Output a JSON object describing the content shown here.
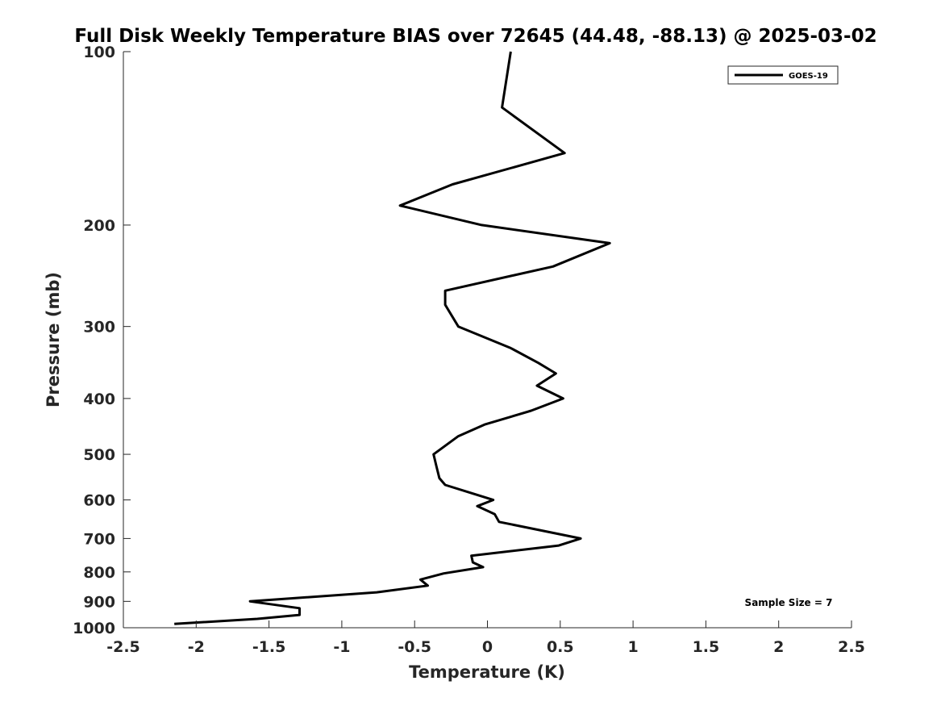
{
  "chart_data": {
    "type": "line",
    "title": "Full Disk Weekly Temperature BIAS over 72645 (44.48, -88.13) @ 2025-03-02",
    "xlabel": "Temperature (K)",
    "ylabel": "Pressure (mb)",
    "xlim": [
      -2.5,
      2.5
    ],
    "ylim": [
      100,
      1000
    ],
    "yscale": "log",
    "y_reversed": true,
    "x_ticks": [
      -2.5,
      -2,
      -1.5,
      -1,
      -0.5,
      0,
      0.5,
      1,
      1.5,
      2,
      2.5
    ],
    "x_tick_labels": [
      "-2.5",
      "-2",
      "-1.5",
      "-1",
      "-0.5",
      "0",
      "0.5",
      "1",
      "1.5",
      "2",
      "2.5"
    ],
    "y_ticks": [
      100,
      200,
      300,
      400,
      500,
      600,
      700,
      800,
      900,
      1000
    ],
    "y_tick_labels": [
      "100",
      "200",
      "300",
      "400",
      "500",
      "600",
      "700",
      "800",
      "900",
      "1000"
    ],
    "grid": false,
    "legend_position": "top-right",
    "annotation": "Sample Size = 7",
    "series": [
      {
        "name": "GOES-19",
        "color": "#000000",
        "points": [
          {
            "x": 0.16,
            "y": 100
          },
          {
            "x": 0.1,
            "y": 125
          },
          {
            "x": 0.53,
            "y": 150
          },
          {
            "x": -0.24,
            "y": 170
          },
          {
            "x": -0.6,
            "y": 185
          },
          {
            "x": -0.04,
            "y": 200
          },
          {
            "x": 0.84,
            "y": 215
          },
          {
            "x": 0.45,
            "y": 236
          },
          {
            "x": -0.29,
            "y": 260
          },
          {
            "x": -0.29,
            "y": 275
          },
          {
            "x": -0.2,
            "y": 300
          },
          {
            "x": 0.16,
            "y": 327
          },
          {
            "x": 0.35,
            "y": 347
          },
          {
            "x": 0.47,
            "y": 362
          },
          {
            "x": 0.34,
            "y": 380
          },
          {
            "x": 0.52,
            "y": 400
          },
          {
            "x": 0.3,
            "y": 420
          },
          {
            "x": -0.02,
            "y": 444
          },
          {
            "x": -0.2,
            "y": 465
          },
          {
            "x": -0.37,
            "y": 500
          },
          {
            "x": -0.35,
            "y": 525
          },
          {
            "x": -0.33,
            "y": 550
          },
          {
            "x": -0.29,
            "y": 565
          },
          {
            "x": -0.1,
            "y": 585
          },
          {
            "x": 0.04,
            "y": 600
          },
          {
            "x": -0.07,
            "y": 615
          },
          {
            "x": 0.05,
            "y": 635
          },
          {
            "x": 0.08,
            "y": 655
          },
          {
            "x": 0.64,
            "y": 700
          },
          {
            "x": 0.49,
            "y": 720
          },
          {
            "x": -0.11,
            "y": 750
          },
          {
            "x": -0.1,
            "y": 770
          },
          {
            "x": -0.03,
            "y": 785
          },
          {
            "x": -0.3,
            "y": 805
          },
          {
            "x": -0.46,
            "y": 825
          },
          {
            "x": -0.41,
            "y": 845
          },
          {
            "x": -0.76,
            "y": 868
          },
          {
            "x": -1.63,
            "y": 900
          },
          {
            "x": -1.29,
            "y": 925
          },
          {
            "x": -1.29,
            "y": 950
          },
          {
            "x": -1.58,
            "y": 965
          },
          {
            "x": -2.15,
            "y": 985
          }
        ]
      }
    ]
  }
}
